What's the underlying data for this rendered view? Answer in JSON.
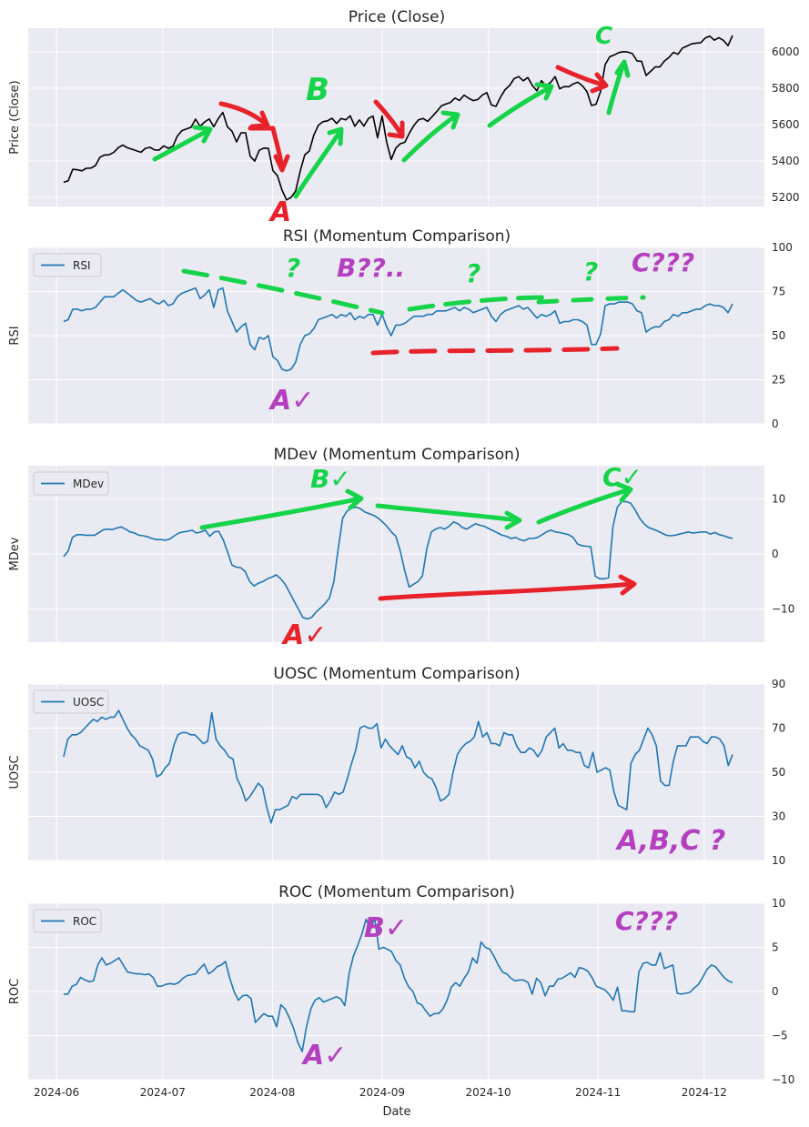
{
  "colors": {
    "panel_bg": "#eaeaf2",
    "grid": "#ffffff",
    "series": "#1f77b4",
    "price": "#000000",
    "anno_red": "#e8222a",
    "anno_green": "#16d44a",
    "anno_purple": "#b43fc0"
  },
  "xlabel": "Date",
  "x_tick_labels": [
    "2024-06",
    "2024-07",
    "2024-08",
    "2024-09",
    "2024-10",
    "2024-11",
    "2024-12"
  ],
  "annotation_labels": {
    "price_A": "A",
    "price_B": "B",
    "price_C": "C",
    "rsi_q1": "?",
    "rsi_q2": "?",
    "rsi_q3": "?",
    "rsi_A": "A✓",
    "rsi_B": "B??..",
    "rsi_C": "C???",
    "mdev_A": "A✓",
    "mdev_B": "B✓",
    "mdev_C": "C✓",
    "uosc_abc": "A,B,C ?",
    "roc_A": "A✓",
    "roc_B": "B✓",
    "roc_C": "C???"
  },
  "chart_data": [
    {
      "type": "line",
      "title": "Price (Close)",
      "ylabel": "Price (Close)",
      "legend": null,
      "ylim": [
        5150,
        6130
      ],
      "yticks": [
        5200,
        5400,
        5600,
        5800,
        6000
      ],
      "tick_labels": [
        "5200",
        "5400",
        "5600",
        "5800",
        "6000"
      ],
      "x_start": "2024-06-03",
      "x_end": "2024-12-09",
      "series": [
        {
          "name": "Price (Close)",
          "color": "#000000",
          "values": [
            5283,
            5291,
            5354,
            5352,
            5346,
            5360,
            5361,
            5375,
            5421,
            5433,
            5434,
            5447,
            5473,
            5488,
            5473,
            5465,
            5456,
            5448,
            5470,
            5475,
            5461,
            5460,
            5483,
            5470,
            5480,
            5537,
            5567,
            5576,
            5585,
            5630,
            5590,
            5615,
            5631,
            5588,
            5633,
            5667,
            5588,
            5564,
            5505,
            5555,
            5555,
            5427,
            5399,
            5459,
            5471,
            5470,
            5347,
            5319,
            5240,
            5186,
            5200,
            5236,
            5344,
            5434,
            5455,
            5543,
            5597,
            5616,
            5621,
            5635,
            5606,
            5634,
            5626,
            5648,
            5591,
            5626,
            5592,
            5634,
            5647,
            5528,
            5648,
            5503,
            5408,
            5471,
            5495,
            5503,
            5554,
            5596,
            5626,
            5634,
            5618,
            5644,
            5672,
            5703,
            5713,
            5722,
            5746,
            5733,
            5762,
            5745,
            5732,
            5738,
            5762,
            5776,
            5708,
            5700,
            5751,
            5792,
            5815,
            5853,
            5864,
            5841,
            5859,
            5815,
            5786,
            5842,
            5812,
            5832,
            5864,
            5797,
            5809,
            5808,
            5824,
            5833,
            5813,
            5782,
            5705,
            5712,
            5783,
            5930,
            5973,
            5983,
            5996,
            6001,
            5999,
            5990,
            5950,
            5948,
            5870,
            5893,
            5917,
            5917,
            5949,
            5969,
            5997,
            5987,
            6021,
            6032,
            6044,
            6048,
            6050,
            6076,
            6086,
            6064,
            6078,
            6063,
            6034,
            6090
          ]
        }
      ]
    },
    {
      "type": "line",
      "title": "RSI (Momentum Comparison)",
      "ylabel": "RSI",
      "legend": "RSI",
      "ylim": [
        0,
        100
      ],
      "yticks": [
        0,
        25,
        50,
        75,
        100
      ],
      "tick_labels": [
        "0",
        "25",
        "50",
        "75",
        "100"
      ],
      "x_start": "2024-06-03",
      "x_end": "2024-12-09",
      "series": [
        {
          "name": "RSI",
          "color": "#1f77b4",
          "values": [
            58,
            59,
            65,
            65,
            64,
            65,
            65,
            66,
            69,
            72,
            72,
            72,
            74,
            76,
            74,
            72,
            70,
            69,
            70,
            71,
            69,
            68,
            70,
            67,
            68,
            72,
            74,
            75,
            76,
            77,
            71,
            73,
            76,
            66,
            76,
            77,
            64,
            58,
            52,
            55,
            57,
            45,
            42,
            49,
            48,
            50,
            38,
            36,
            31,
            30,
            31,
            35,
            45,
            50,
            51,
            54,
            59,
            60,
            61,
            62,
            60,
            62,
            61,
            63,
            59,
            61,
            60,
            62,
            62,
            56,
            62,
            55,
            50,
            56,
            56,
            57,
            59,
            61,
            61,
            61,
            62,
            62,
            64,
            64,
            64,
            65,
            66,
            64,
            66,
            65,
            63,
            64,
            65,
            66,
            61,
            58,
            62,
            64,
            65,
            66,
            67,
            65,
            66,
            63,
            60,
            62,
            61,
            62,
            64,
            57,
            58,
            58,
            59,
            59,
            58,
            56,
            45,
            45,
            51,
            67,
            68,
            68,
            69,
            69,
            69,
            68,
            64,
            63,
            52,
            54,
            55,
            55,
            58,
            59,
            62,
            61,
            63,
            63,
            64,
            65,
            65,
            67,
            68,
            67,
            67,
            66,
            63,
            68
          ]
        }
      ]
    },
    {
      "type": "line",
      "title": "MDev (Momentum Comparison)",
      "ylabel": "MDev",
      "legend": "MDev",
      "ylim": [
        -16,
        16
      ],
      "yticks": [
        -10,
        0,
        10
      ],
      "tick_labels": [
        "−10",
        "0",
        "10"
      ],
      "x_start": "2024-06-03",
      "x_end": "2024-12-09",
      "series": [
        {
          "name": "MDev",
          "color": "#1f77b4",
          "values": [
            -0.5,
            0.5,
            3.0,
            3.5,
            3.5,
            3.4,
            3.4,
            3.4,
            3.9,
            4.4,
            4.5,
            4.4,
            4.7,
            4.9,
            4.5,
            4.0,
            3.8,
            3.4,
            3.3,
            3.1,
            2.8,
            2.6,
            2.6,
            2.5,
            2.7,
            3.3,
            3.8,
            4.0,
            4.1,
            4.3,
            3.8,
            4.0,
            4.3,
            3.2,
            4.0,
            4.1,
            2.6,
            0.4,
            -2.0,
            -2.4,
            -2.5,
            -3.2,
            -5.0,
            -5.8,
            -5.3,
            -5.0,
            -4.5,
            -4.2,
            -3.8,
            -4.5,
            -5.5,
            -7.0,
            -8.5,
            -10.0,
            -11.5,
            -11.8,
            -11.5,
            -10.5,
            -9.8,
            -9.0,
            -8.0,
            -5.0,
            1.0,
            6.5,
            7.8,
            8.3,
            8.5,
            8.2,
            7.6,
            7.3,
            7.0,
            6.5,
            5.8,
            5.0,
            4.0,
            3.2,
            0.5,
            -3.0,
            -6.0,
            -5.5,
            -5.0,
            -4.0,
            1.0,
            4.0,
            4.5,
            4.8,
            4.5,
            5.0,
            5.8,
            5.5,
            4.8,
            4.5,
            5.0,
            5.5,
            5.2,
            5.0,
            4.6,
            4.2,
            3.8,
            3.4,
            3.2,
            2.8,
            3.0,
            2.6,
            2.4,
            2.8,
            2.8,
            3.0,
            3.5,
            4.0,
            4.3,
            4.0,
            3.9,
            3.7,
            3.5,
            3.0,
            1.8,
            1.5,
            1.4,
            1.3,
            -4.0,
            -4.5,
            -4.5,
            -4.3,
            5.0,
            8.5,
            9.5,
            9.5,
            9.2,
            8.0,
            6.5,
            5.5,
            4.8,
            4.5,
            4.2,
            3.8,
            3.4,
            3.3,
            3.4,
            3.6,
            3.8,
            4.0,
            3.8,
            3.9,
            4.0,
            4.0,
            3.6,
            3.9,
            3.5,
            3.3,
            3.0,
            2.8
          ]
        }
      ]
    },
    {
      "type": "line",
      "title": "UOSC (Momentum Comparison)",
      "ylabel": "UOSC",
      "legend": "UOSC",
      "ylim": [
        10,
        90
      ],
      "yticks": [
        10,
        30,
        50,
        70,
        90
      ],
      "tick_labels": [
        "10",
        "30",
        "50",
        "70",
        "90"
      ],
      "x_start": "2024-06-03",
      "x_end": "2024-12-09",
      "series": [
        {
          "name": "UOSC",
          "color": "#1f77b4",
          "values": [
            57,
            65,
            67,
            67,
            68,
            70,
            72,
            74,
            73,
            75,
            74,
            75,
            75,
            78,
            74,
            70,
            67,
            65,
            62,
            61,
            60,
            56,
            48,
            49,
            52,
            54,
            62,
            67,
            68,
            68,
            67,
            67,
            65,
            63,
            64,
            77,
            65,
            62,
            60,
            57,
            56,
            47,
            43,
            37,
            39,
            42,
            45,
            43,
            34,
            27,
            33,
            33,
            34,
            35,
            39,
            38,
            40,
            40,
            40,
            40,
            40,
            39,
            34,
            37,
            41,
            40,
            41,
            47,
            54,
            60,
            70,
            71,
            70,
            70,
            72,
            61,
            65,
            62,
            60,
            58,
            62,
            57,
            56,
            52,
            55,
            50,
            48,
            47,
            43,
            37,
            38,
            40,
            50,
            58,
            61,
            63,
            64,
            66,
            73,
            66,
            68,
            63,
            63,
            62,
            68,
            67,
            67,
            62,
            59,
            59,
            61,
            60,
            57,
            60,
            66,
            68,
            70,
            61,
            63,
            60,
            60,
            59,
            59,
            53,
            52,
            59,
            50,
            51,
            52,
            51,
            41,
            35,
            34,
            33,
            54,
            58,
            60,
            65,
            70,
            67,
            62,
            46,
            44,
            44,
            55,
            62,
            62,
            62,
            66,
            66,
            66,
            64,
            63,
            66,
            66,
            65,
            62,
            53,
            58
          ]
        }
      ]
    },
    {
      "type": "line",
      "title": "ROC (Momentum Comparison)",
      "ylabel": "ROC",
      "legend": "ROC",
      "ylim": [
        -10,
        10
      ],
      "yticks": [
        -10,
        -5,
        0,
        5,
        10
      ],
      "tick_labels": [
        "−10",
        "−5",
        "0",
        "5",
        "10"
      ],
      "x_start": "2024-06-03",
      "x_end": "2024-12-09",
      "series": [
        {
          "name": "ROC",
          "color": "#1f77b4",
          "values": [
            -0.3,
            -0.3,
            0.6,
            0.8,
            1.6,
            1.3,
            1.1,
            1.2,
            3.0,
            3.8,
            3.0,
            3.2,
            3.5,
            3.8,
            3.0,
            2.2,
            2.1,
            2.0,
            2.0,
            1.9,
            2.0,
            1.6,
            0.6,
            0.6,
            0.8,
            0.9,
            0.8,
            1.0,
            1.5,
            1.8,
            1.9,
            2.0,
            2.6,
            3.1,
            2.0,
            2.3,
            2.8,
            3.0,
            3.4,
            1.5,
            0.0,
            -1.0,
            -0.5,
            -0.4,
            -0.8,
            -3.5,
            -3.0,
            -2.5,
            -2.8,
            -2.8,
            -4.0,
            -1.5,
            -2.0,
            -3.0,
            -4.2,
            -5.8,
            -6.8,
            -4.0,
            -2.0,
            -1.0,
            -0.7,
            -1.2,
            -1.0,
            -0.8,
            -0.6,
            -0.8,
            -1.6,
            2.0,
            4.0,
            5.2,
            6.5,
            8.2,
            7.0,
            8.3,
            4.8,
            5.0,
            4.8,
            4.5,
            3.5,
            3.0,
            1.5,
            0.5,
            0.0,
            -1.3,
            -1.5,
            -2.2,
            -2.8,
            -2.5,
            -2.5,
            -2.0,
            -1.0,
            0.5,
            1.0,
            0.6,
            1.5,
            2.2,
            3.8,
            3.2,
            5.6,
            5.0,
            4.8,
            4.0,
            3.0,
            2.2,
            2.0,
            1.5,
            1.2,
            1.3,
            1.3,
            1.0,
            -0.3,
            1.5,
            1.0,
            -0.5,
            0.6,
            0.6,
            1.4,
            1.5,
            1.8,
            2.1,
            1.6,
            2.7,
            2.6,
            2.3,
            1.6,
            0.6,
            0.4,
            0.2,
            -0.3,
            -1.0,
            0.5,
            -2.2,
            -2.2,
            -2.3,
            -2.3,
            2.2,
            3.2,
            3.3,
            3.0,
            3.0,
            4.4,
            2.6,
            2.8,
            3.0,
            -0.2,
            -0.3,
            -0.2,
            -0.1,
            0.4,
            0.8,
            1.6,
            2.5,
            3.0,
            2.8,
            2.2,
            1.6,
            1.2,
            1.0
          ]
        }
      ]
    }
  ]
}
